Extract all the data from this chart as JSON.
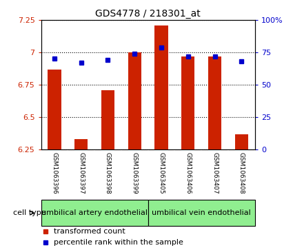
{
  "title": "GDS4778 / 218301_at",
  "samples": [
    "GSM1063396",
    "GSM1063397",
    "GSM1063398",
    "GSM1063399",
    "GSM1063405",
    "GSM1063406",
    "GSM1063407",
    "GSM1063408"
  ],
  "transformed_count": [
    6.87,
    6.33,
    6.71,
    7.0,
    7.21,
    6.97,
    6.97,
    6.37
  ],
  "percentile_rank": [
    70,
    67,
    69,
    74,
    79,
    72,
    72,
    68
  ],
  "ylim_left": [
    6.25,
    7.25
  ],
  "yticks_left": [
    6.25,
    6.5,
    6.75,
    7.0,
    7.25
  ],
  "ylim_right": [
    0,
    100
  ],
  "yticks_right": [
    0,
    25,
    50,
    75,
    100
  ],
  "ytick_labels_right": [
    "0",
    "25",
    "50",
    "75",
    "100%"
  ],
  "bar_color": "#cc2200",
  "dot_color": "#0000cc",
  "bar_width": 0.5,
  "group1_label": "umbilical artery endothelial",
  "group2_label": "umbilical vein endothelial",
  "group_color": "#90ee90",
  "cell_type_label": "cell type",
  "legend_red_label": "transformed count",
  "legend_blue_label": "percentile rank within the sample",
  "background_color": "#ffffff",
  "label_bg_color": "#c8c8c8",
  "tick_color_left": "#cc2200",
  "tick_color_right": "#0000cc",
  "title_fontsize": 10,
  "label_fontsize": 6.5,
  "group_fontsize": 8,
  "legend_fontsize": 8
}
